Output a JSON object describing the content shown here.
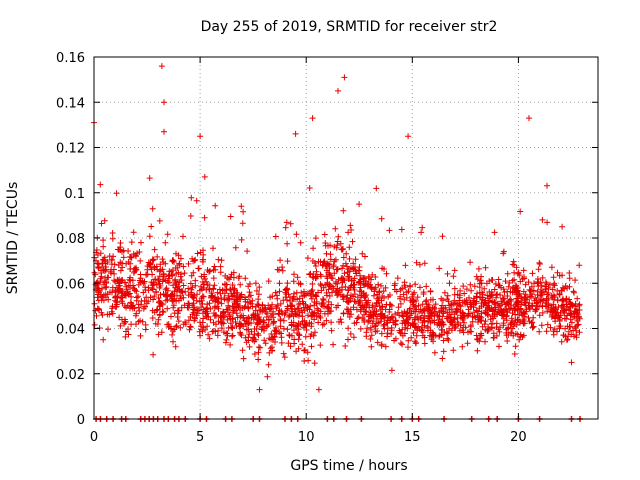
{
  "chart_data": {
    "type": "scatter",
    "title": "Day 255 of 2019, SRMTID for receiver str2",
    "xlabel": "GPS time / hours",
    "ylabel": "SRMTID / TECUs",
    "xlim": [
      0,
      23.75
    ],
    "ylim": [
      0,
      0.16
    ],
    "xticks": [
      0,
      5,
      10,
      15,
      20
    ],
    "xtick_labels": [
      "0",
      "5",
      "10",
      "15",
      "20"
    ],
    "yticks": [
      0,
      0.02,
      0.04,
      0.06,
      0.08,
      0.1,
      0.12,
      0.14,
      0.16
    ],
    "ytick_labels": [
      "0",
      "0.02",
      "0.04",
      "0.06",
      "0.08",
      "0.1",
      "0.12",
      "0.14",
      "0.16"
    ],
    "grid": true,
    "marker": "plus",
    "marker_color": "#e60000",
    "highlight_points": [
      {
        "x": 0.0,
        "y": 0.131
      },
      {
        "x": 3.2,
        "y": 0.156
      },
      {
        "x": 3.3,
        "y": 0.14
      },
      {
        "x": 3.3,
        "y": 0.127
      },
      {
        "x": 5.0,
        "y": 0.125
      },
      {
        "x": 9.5,
        "y": 0.126
      },
      {
        "x": 10.3,
        "y": 0.133
      },
      {
        "x": 11.5,
        "y": 0.145
      },
      {
        "x": 11.8,
        "y": 0.151
      },
      {
        "x": 14.8,
        "y": 0.125
      },
      {
        "x": 20.5,
        "y": 0.133
      },
      {
        "x": 7.8,
        "y": 0.013
      },
      {
        "x": 10.6,
        "y": 0.013
      },
      {
        "x": 22.5,
        "y": 0.025
      }
    ],
    "envelope": {
      "x": [
        0,
        1,
        2,
        3,
        4,
        5,
        6,
        7,
        8,
        9,
        10,
        11,
        12,
        13,
        14,
        15,
        16,
        17,
        18,
        19,
        20,
        21,
        22,
        22.9
      ],
      "mean": [
        0.062,
        0.06,
        0.057,
        0.058,
        0.057,
        0.054,
        0.052,
        0.047,
        0.04,
        0.048,
        0.046,
        0.06,
        0.058,
        0.052,
        0.046,
        0.048,
        0.043,
        0.045,
        0.05,
        0.048,
        0.05,
        0.055,
        0.048,
        0.045
      ],
      "spread": [
        0.022,
        0.022,
        0.022,
        0.024,
        0.022,
        0.02,
        0.018,
        0.018,
        0.017,
        0.02,
        0.022,
        0.026,
        0.022,
        0.018,
        0.018,
        0.016,
        0.014,
        0.015,
        0.017,
        0.016,
        0.018,
        0.018,
        0.016,
        0.014
      ]
    },
    "point_count": 2400,
    "zero_value_times": [
      0.1,
      0.3,
      0.6,
      0.9,
      1.3,
      1.5,
      2.2,
      2.4,
      2.6,
      2.8,
      3.0,
      3.3,
      3.5,
      3.8,
      4.0,
      4.3,
      5.0,
      5.3,
      6.2,
      6.5,
      7.5,
      7.8,
      9.0,
      9.3,
      9.6,
      11.0,
      11.3,
      11.9,
      12.6,
      14.0,
      14.5,
      15.0,
      15.3,
      16.5,
      17.8,
      18.6,
      19.0,
      20.0,
      21.0,
      22.5,
      22.9
    ]
  }
}
